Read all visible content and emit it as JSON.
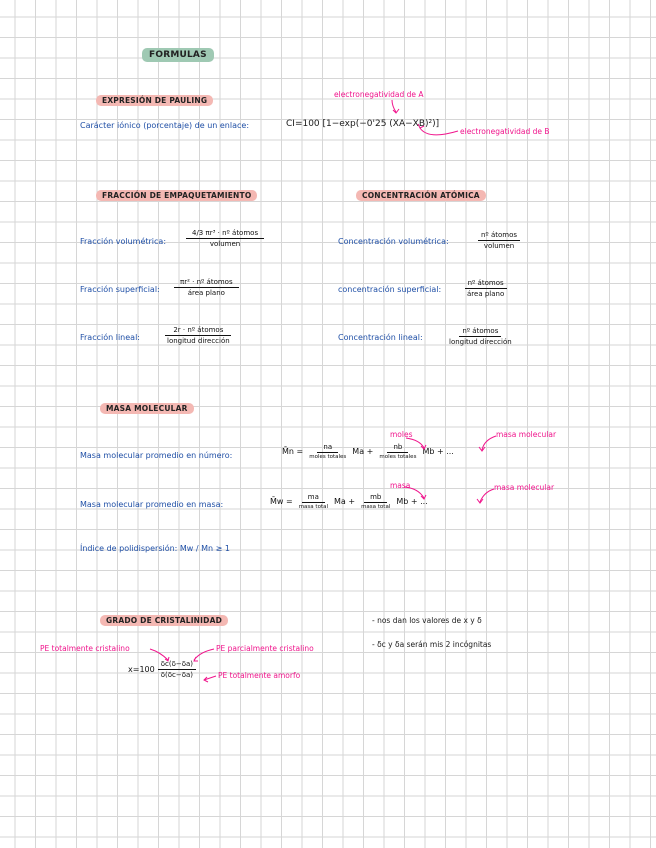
{
  "title": "FORMULAS",
  "pauling": {
    "heading": "EXPRESIÓN DE PAULING",
    "label": "Carácter iónico (porcentaje) de un enlace:",
    "formula": "CI=100 [1−exp(−0'25 (XA−XB)²)]",
    "note_a": "electronegatividad de A",
    "note_b": "electronegatividad de B"
  },
  "empaquetamiento": {
    "heading": "FRACCIÓN DE EMPAQUETAMIENTO",
    "vol_label": "Fracción volumétrica:",
    "vol_num": "4/3 πr³ · nº átomos",
    "vol_den": "volumen",
    "sup_label": "Fracción superficial:",
    "sup_num": "πr² · nº átomos",
    "sup_den": "área plano",
    "lin_label": "Fracción lineal:",
    "lin_num": "2r · nº átomos",
    "lin_den": "longitud dirección"
  },
  "concentracion": {
    "heading": "CONCENTRACIÓN ATÓMICA",
    "vol_label": "Concentración volumétrica:",
    "vol_num": "nº átomos",
    "vol_den": "volumen",
    "sup_label": "concentración superficial:",
    "sup_num": "nº átomos",
    "sup_den": "área plano",
    "lin_label": "Concentración lineal:",
    "lin_num": "nº átomos",
    "lin_den": "longitud dirección"
  },
  "masa": {
    "heading": "MASA MOLECULAR",
    "num_label": "Masa molecular promedio en número:",
    "num_lhs": "M̄n =",
    "num_a_num": "na",
    "num_a_den": "moles totales",
    "num_a_mult": "Ma +",
    "num_b_num": "nb",
    "num_b_den": "moles totales",
    "num_b_mult": "Mb + ...",
    "note_moles": "moles",
    "note_masa_molecular": "masa molecular",
    "peso_label": "Masa molecular promedio en masa:",
    "peso_lhs": "M̄w =",
    "peso_a_num": "ma",
    "peso_a_den": "masa total",
    "peso_a_mult": "Ma +",
    "peso_b_num": "mb",
    "peso_b_den": "masa total",
    "peso_b_mult": "Mb + ...",
    "note_masa": "masa",
    "note_masa_molecular_2": "masa molecular",
    "indice": "Índice de polidispersión:  Mw / Mn ≥ 1"
  },
  "cristalinidad": {
    "heading": "GRADO DE CRISTALINIDAD",
    "formula_lhs": "x=100",
    "formula_num": "δc(δ−δa)",
    "formula_den": "δ(δc−δa)",
    "note_total_cristalino": "PE totalmente cristalino",
    "note_parcial": "PE parcialmente cristalino",
    "note_amorfo": "PE totalmente amorfo",
    "bullet_1": "- nos dan los valores de x y δ",
    "bullet_2": "- δc y δa serán mis 2 incógnitas"
  }
}
